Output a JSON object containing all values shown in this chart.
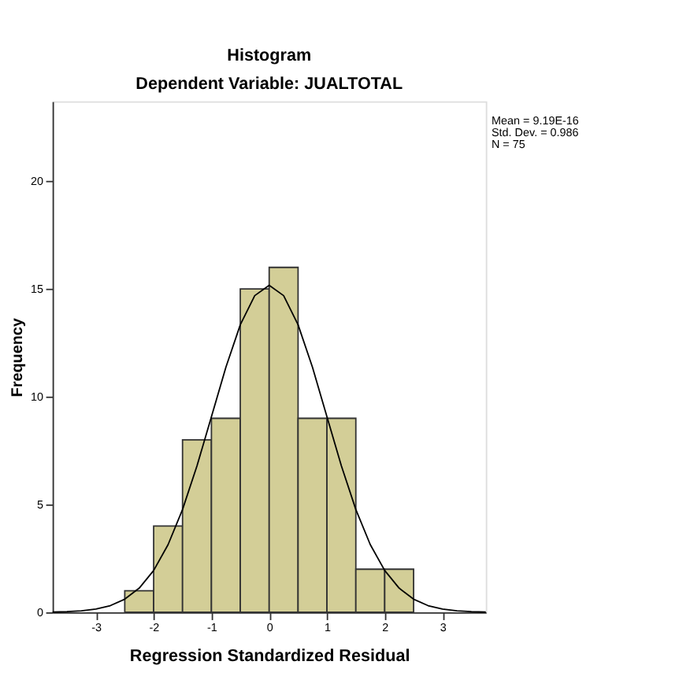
{
  "chart_data": {
    "type": "histogram",
    "title": "Histogram",
    "subtitle": "Dependent Variable: JUALTOTAL",
    "xlabel": "Regression Standardized Residual",
    "ylabel": "Frequency",
    "series": [
      {
        "color": "#d3ce97",
        "bins": [
          -2.5,
          -2,
          -1.5,
          -1,
          -0.5,
          0,
          0.5,
          1,
          1.5,
          2,
          2.5
        ],
        "values": [
          1,
          4,
          8,
          9,
          15,
          16,
          9,
          9,
          2,
          2
        ]
      },
      {
        "type": "line",
        "color": "#000000",
        "x": [
          -3.75,
          -3.5,
          -3.25,
          -3,
          -2.75,
          -2.5,
          -2.25,
          -2,
          -1.75,
          -1.5,
          -1.25,
          -1,
          -0.75,
          -0.5,
          -0.25,
          0,
          0.25,
          0.5,
          0.75,
          1,
          1.25,
          1.5,
          1.75,
          2,
          2.25,
          2.5,
          2.75,
          3,
          3.25,
          3.5,
          3.75
        ],
        "values": [
          0.01,
          0.03,
          0.07,
          0.15,
          0.31,
          0.61,
          1.12,
          1.94,
          3.14,
          4.77,
          6.79,
          9.07,
          11.36,
          13.34,
          14.69,
          15.17,
          14.69,
          13.34,
          11.36,
          9.07,
          6.79,
          4.77,
          3.14,
          1.94,
          1.12,
          0.61,
          0.31,
          0.15,
          0.07,
          0.03,
          0.01
        ]
      }
    ],
    "xlim": [
      -3.75,
      3.75
    ],
    "xticks": [
      -3,
      -2,
      -1,
      0,
      1,
      2,
      3
    ],
    "ylim": [
      0,
      23.7
    ],
    "yticks": [
      0,
      5,
      10,
      15,
      20
    ],
    "grid": false,
    "marker": "none",
    "line_style": "solid",
    "annotations": [
      "Mean = 9.19E-16",
      "Std. Dev. = 0.986",
      "N = 75"
    ]
  }
}
